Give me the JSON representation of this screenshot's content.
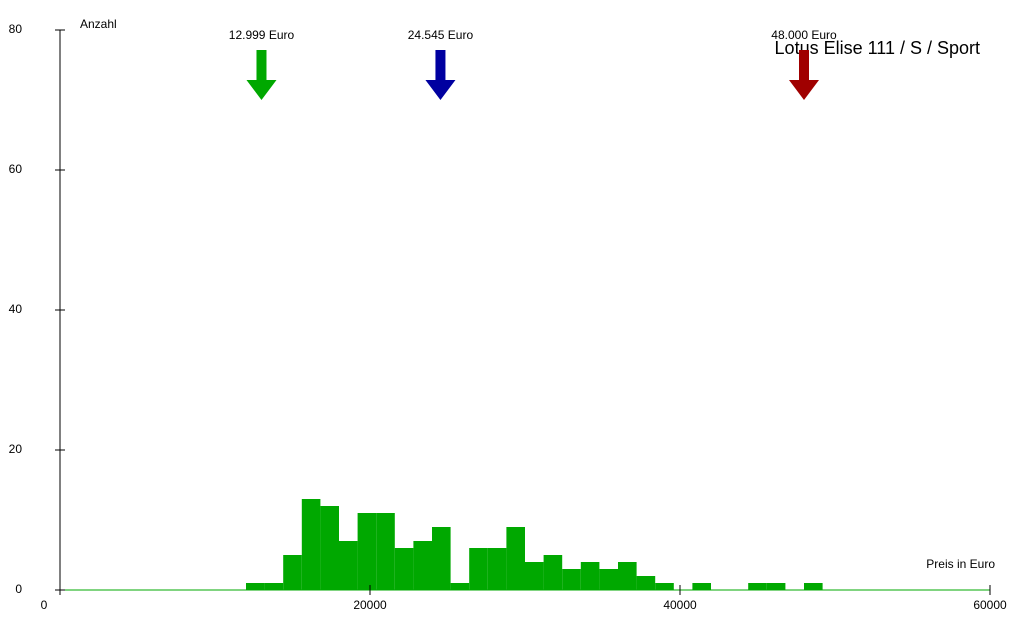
{
  "chart_data": {
    "type": "histogram",
    "title": "Lotus Elise 111 / S / Sport",
    "x_label": "Preis in Euro",
    "y_label": "Anzahl",
    "bins": [
      12000,
      13200,
      14400,
      15600,
      16800,
      18000,
      19200,
      20400,
      21600,
      22800,
      24000,
      25200,
      26400,
      27600,
      28800,
      30000,
      31200,
      32400,
      33600,
      34800,
      36000,
      37200,
      38400,
      39600,
      40800,
      42000,
      43200,
      44400,
      45600,
      46800,
      48000,
      49200
    ],
    "values": [
      1,
      1,
      5,
      13,
      12,
      7,
      11,
      11,
      6,
      7,
      9,
      1,
      6,
      6,
      9,
      4,
      5,
      3,
      4,
      3,
      4,
      2,
      1,
      0,
      1,
      0,
      0,
      1,
      1,
      0,
      1
    ],
    "color": "#00a800",
    "xlim": [
      0,
      60000
    ],
    "ylim": [
      0,
      80
    ],
    "xticks": [
      0,
      20000,
      40000,
      60000
    ],
    "yticks": [
      0,
      20,
      40,
      60,
      80
    ],
    "markers": [
      {
        "value": 12999,
        "label": "12.999 Euro",
        "color": "#00a800"
      },
      {
        "value": 24545,
        "label": "24.545 Euro",
        "color": "#0000a0"
      },
      {
        "value": 48000,
        "label": "48.000 Euro",
        "color": "#a00000"
      }
    ]
  }
}
